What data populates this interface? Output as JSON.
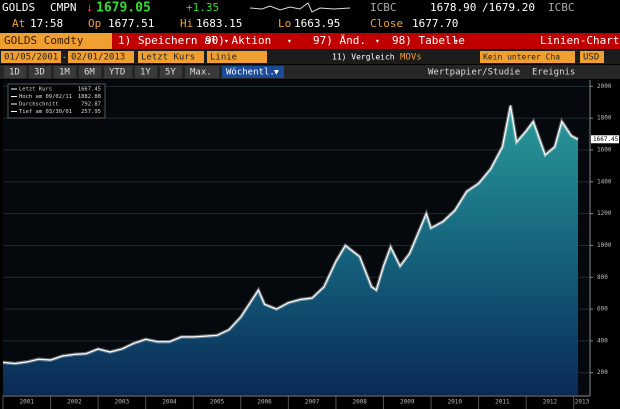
{
  "header": {
    "ticker": "GOLDS",
    "source": "CMPN",
    "arrow": "↓",
    "last": "1679.05",
    "change": "+1.35",
    "bid_src": "ICBC",
    "bid": "1678.90",
    "ask": "/1679.20",
    "ask_src": "ICBC",
    "time_label": "At",
    "time": "17:58",
    "open_label": "Op",
    "open": "1677.51",
    "high_label": "Hi",
    "high": "1683.15",
    "low_label": "Lo",
    "low": "1663.95",
    "close_label": "Close",
    "close": "1677.70"
  },
  "toolbar": {
    "security": "GOLDS Comdty",
    "menus": [
      "1) Speichern al",
      "90) Aktion",
      "97) Änd.",
      "98) Tabelle"
    ],
    "chart_type": "Linien-Chart"
  },
  "settings": {
    "start": "01/05/2001",
    "dash": "-",
    "end": "02/01/2013",
    "field": "Letzt Kurs",
    "style": "Linie",
    "compare": "11) Vergleich",
    "movs": "MOVs",
    "lower": "Kein unterer Cha",
    "currency": "USD"
  },
  "periods": {
    "buttons": [
      "1D",
      "3D",
      "1M",
      "6M",
      "YTD",
      "1Y",
      "5Y",
      "Max."
    ],
    "frequency": "Wöchentl.",
    "study": "Wertpapier/Studie",
    "events": "Ereignis"
  },
  "chart_data": {
    "type": "line",
    "x": [
      2001.0,
      2001.25,
      2001.5,
      2001.75,
      2002.0,
      2002.25,
      2002.5,
      2002.75,
      2003.0,
      2003.25,
      2003.5,
      2003.75,
      2004.0,
      2004.25,
      2004.5,
      2004.75,
      2005.0,
      2005.25,
      2005.5,
      2005.75,
      2006.0,
      2006.37,
      2006.5,
      2006.75,
      2007.0,
      2007.25,
      2007.5,
      2007.75,
      2008.0,
      2008.2,
      2008.5,
      2008.75,
      2008.85,
      2009.0,
      2009.15,
      2009.35,
      2009.55,
      2009.9,
      2010.0,
      2010.25,
      2010.5,
      2010.75,
      2011.0,
      2011.25,
      2011.5,
      2011.67,
      2011.8,
      2012.0,
      2012.15,
      2012.4,
      2012.6,
      2012.75,
      2012.95,
      2013.09
    ],
    "series": [
      {
        "name": "Letzt Kurs",
        "color": "#ffffff",
        "values": [
          265,
          258,
          268,
          285,
          280,
          305,
          315,
          320,
          350,
          330,
          350,
          385,
          410,
          395,
          395,
          425,
          425,
          430,
          435,
          470,
          550,
          720,
          630,
          600,
          640,
          660,
          670,
          740,
          900,
          1000,
          930,
          740,
          720,
          870,
          990,
          870,
          950,
          1200,
          1110,
          1150,
          1220,
          1340,
          1390,
          1480,
          1620,
          1880,
          1650,
          1720,
          1780,
          1570,
          1620,
          1780,
          1690,
          1667
        ]
      }
    ],
    "xlim": [
      2001,
      2013.09
    ],
    "xticks": [
      {
        "value": 2001,
        "label": "2001"
      },
      {
        "value": 2002,
        "label": "2002"
      },
      {
        "value": 2003,
        "label": "2003"
      },
      {
        "value": 2004,
        "label": "2004"
      },
      {
        "value": 2005,
        "label": "2005"
      },
      {
        "value": 2006,
        "label": "2006"
      },
      {
        "value": 2007,
        "label": "2007"
      },
      {
        "value": 2008,
        "label": "2008"
      },
      {
        "value": 2009,
        "label": "2009"
      },
      {
        "value": 2010,
        "label": "2010"
      },
      {
        "value": 2011,
        "label": "2011"
      },
      {
        "value": 2012,
        "label": "2012"
      },
      {
        "value": 2013,
        "label": "2013"
      }
    ],
    "ylim": [
      60,
      2040
    ],
    "yticks": [
      200,
      400,
      600,
      800,
      1000,
      1200,
      1400,
      1600,
      1800,
      2000
    ],
    "grid": true,
    "last_value": 1667.45,
    "stats": [
      {
        "label": "Letzt Kurs",
        "value": 1667.45
      },
      {
        "label": "Hoch am 09/02/11",
        "value": 1882.88
      },
      {
        "label": "Durchschnitt",
        "value": 792.87
      },
      {
        "label": "Tief am 03/30/01",
        "value": 257.95
      }
    ]
  }
}
